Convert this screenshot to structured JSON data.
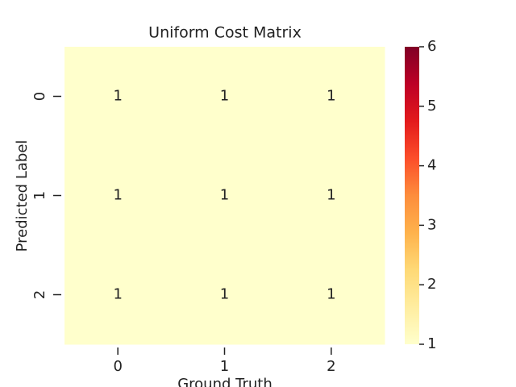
{
  "chart_data": {
    "type": "heatmap",
    "title": "Uniform Cost Matrix",
    "x_label": "Ground Truth",
    "y_label": "Predicted Label",
    "x_categories": [
      "0",
      "1",
      "2"
    ],
    "y_categories": [
      "0",
      "1",
      "2"
    ],
    "values": [
      [
        1,
        1,
        1
      ],
      [
        1,
        1,
        1
      ],
      [
        1,
        1,
        1
      ]
    ],
    "colormap": "YlOrRd",
    "clim": [
      1,
      6
    ],
    "cticks": [
      1,
      2,
      3,
      4,
      5,
      6
    ]
  }
}
